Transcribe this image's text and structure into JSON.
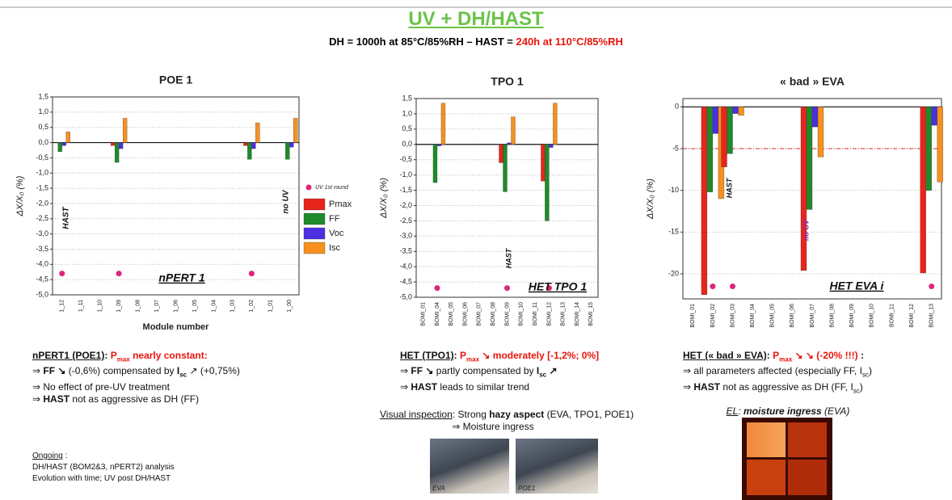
{
  "header": {
    "title": "UV + DH/HAST",
    "subtitle": [
      {
        "t": "DH = 1000h at 85°C/85%RH – HAST = ",
        "s": "b"
      },
      {
        "t": "240h at 110°C/85%RH",
        "s": "r"
      }
    ]
  },
  "chart_data": [
    {
      "type": "bar",
      "title": "POE 1",
      "ylabel": "ΔX/X₀ (%)",
      "xlabel": "Module number",
      "ylim": [
        -5,
        1.5
      ],
      "yticks": [
        {
          "value": 1.5,
          "label": "1,5"
        },
        {
          "value": 1,
          "label": "1,0"
        },
        {
          "value": 0.5,
          "label": "0,5"
        },
        {
          "value": 0,
          "label": "0,0"
        },
        {
          "value": -0.5,
          "label": "-0,5"
        },
        {
          "value": -1,
          "label": "-1,0"
        },
        {
          "value": -1.5,
          "label": "-1,5"
        },
        {
          "value": -2,
          "label": "-2,0"
        },
        {
          "value": -2.5,
          "label": "-2,5"
        },
        {
          "value": -3,
          "label": "-3,0"
        },
        {
          "value": -3.5,
          "label": "-3,5"
        },
        {
          "value": -4,
          "label": "-4,0"
        },
        {
          "value": -4.5,
          "label": "-4,5"
        },
        {
          "value": -5,
          "label": "-5,0"
        }
      ],
      "categories": [
        "1_12",
        "1_11",
        "1_10",
        "1_09",
        "1_08",
        "1_07",
        "1_06",
        "1_05",
        "1_04",
        "1_03",
        "1_02",
        "1_01",
        "1_00"
      ],
      "series": [
        {
          "name": "Pmax",
          "color": "#e8251c",
          "values": [
            0,
            null,
            null,
            -0.1,
            null,
            null,
            null,
            null,
            null,
            null,
            -0.1,
            null,
            0
          ]
        },
        {
          "name": "FF",
          "color": "#1e8a2a",
          "values": [
            -0.3,
            null,
            null,
            -0.65,
            null,
            null,
            null,
            null,
            null,
            null,
            -0.55,
            null,
            -0.55
          ]
        },
        {
          "name": "Voc",
          "color": "#4b2fe0",
          "values": [
            -0.1,
            null,
            null,
            -0.2,
            null,
            null,
            null,
            null,
            null,
            null,
            -0.2,
            null,
            -0.15
          ]
        },
        {
          "name": "Isc",
          "color": "#f7901e",
          "values": [
            0.35,
            null,
            null,
            0.8,
            null,
            null,
            null,
            null,
            null,
            null,
            0.65,
            null,
            0.8
          ]
        }
      ],
      "markers": {
        "name": "UV 1st round",
        "color": "#e0257a",
        "values": [
          -4.3,
          null,
          null,
          -4.3,
          null,
          null,
          null,
          null,
          null,
          null,
          -4.3,
          null,
          null
        ]
      },
      "annotations": [
        "HAST",
        "no UV",
        "nPERT 1"
      ]
    },
    {
      "type": "bar",
      "title": "TPO 1",
      "ylabel": "ΔX/X₀ (%)",
      "ylim": [
        -5,
        1.5
      ],
      "yticks": [
        {
          "value": 1.5,
          "label": "1,5"
        },
        {
          "value": 1,
          "label": "1,0"
        },
        {
          "value": 0.5,
          "label": "0,5"
        },
        {
          "value": 0,
          "label": "0,0"
        },
        {
          "value": -0.5,
          "label": "-0,5"
        },
        {
          "value": -1,
          "label": "-1,0"
        },
        {
          "value": -1.5,
          "label": "-1,5"
        },
        {
          "value": -2,
          "label": "-2,0"
        },
        {
          "value": -2.5,
          "label": "-2,5"
        },
        {
          "value": -3,
          "label": "-3,0"
        },
        {
          "value": -3.5,
          "label": "-3,5"
        },
        {
          "value": -4,
          "label": "-4,0"
        },
        {
          "value": -4.5,
          "label": "-4,5"
        },
        {
          "value": -5,
          "label": "-5,0"
        }
      ],
      "categories": [
        "BOMI_01",
        "BOMI_04",
        "BOMI_05",
        "BOMI_06",
        "BOMI_07",
        "BOMI_08",
        "BOMI_09",
        "BOMI_10",
        "BOMI_11",
        "BOMI_12",
        "BOMI_13",
        "BOMI_14",
        "BOMI_15"
      ],
      "series": [
        {
          "color": "#e8251c",
          "values": [
            null,
            0,
            null,
            null,
            null,
            null,
            -0.6,
            null,
            null,
            -1.2,
            null,
            null,
            null
          ]
        },
        {
          "color": "#1e8a2a",
          "values": [
            null,
            -1.25,
            null,
            null,
            null,
            null,
            -1.55,
            null,
            null,
            -2.5,
            null,
            null,
            null
          ]
        },
        {
          "color": "#4b2fe0",
          "values": [
            null,
            -0.05,
            null,
            null,
            null,
            null,
            0.05,
            null,
            null,
            -0.1,
            null,
            null,
            null
          ]
        },
        {
          "color": "#f7901e",
          "values": [
            null,
            1.35,
            null,
            null,
            null,
            null,
            0.9,
            null,
            null,
            1.35,
            null,
            null,
            null
          ]
        }
      ],
      "markers": {
        "color": "#e0257a",
        "values": [
          null,
          -4.7,
          null,
          null,
          null,
          null,
          -4.7,
          null,
          null,
          -4.7,
          null,
          null,
          null
        ]
      },
      "annotations": [
        "HAST",
        "HET TPO 1"
      ]
    },
    {
      "type": "bar",
      "title": "«  bad » EVA",
      "ylabel": "ΔX/X₀ (%)",
      "ylim": [
        -23,
        1
      ],
      "yticks": [
        0,
        -5,
        -10,
        -15,
        -20
      ],
      "hline": {
        "value": -5,
        "color": "#e8251c"
      },
      "categories": [
        "BOMI_01",
        "BOMI_02",
        "BOMI_03",
        "BOMI_04",
        "BOMI_05",
        "BOMI_06",
        "BOMI_07",
        "BOMI_08",
        "BOMI_09",
        "BOMI_10",
        "BOMI_11",
        "BOMI_12",
        "BOMI_13"
      ],
      "series": [
        {
          "color": "#e8251c",
          "values": [
            null,
            -22.5,
            -7.2,
            null,
            null,
            null,
            -19.6,
            null,
            null,
            null,
            null,
            null,
            -19.9
          ]
        },
        {
          "color": "#1e8a2a",
          "values": [
            null,
            -10.2,
            -5.6,
            null,
            null,
            null,
            -12.3,
            null,
            null,
            null,
            null,
            null,
            -10
          ]
        },
        {
          "color": "#4b2fe0",
          "values": [
            null,
            -3.2,
            -0.8,
            null,
            null,
            null,
            -2.4,
            null,
            null,
            null,
            null,
            null,
            -2.2
          ]
        },
        {
          "color": "#f7901e",
          "values": [
            null,
            -11,
            -1,
            null,
            null,
            null,
            -6,
            null,
            null,
            null,
            null,
            null,
            -9
          ]
        }
      ],
      "markers": {
        "color": "#e0257a",
        "values": [
          null,
          -21.5,
          -21.5,
          null,
          null,
          null,
          null,
          null,
          null,
          null,
          null,
          null,
          -21.5
        ]
      },
      "annotations": [
        "HAST",
        "no UV",
        "HET EVA i"
      ]
    }
  ],
  "notes": [
    {
      "lines": [
        [
          {
            "t": "nPERT1 (POE1)",
            "s": "bu"
          },
          {
            "t": ": ",
            "s": "b"
          },
          {
            "t": "P",
            "s": "r"
          },
          {
            "t": "max",
            "s": "rs"
          },
          {
            "t": " nearly constant:",
            "s": "r"
          }
        ],
        [
          {
            "t": "⇒ ",
            "s": ""
          },
          {
            "t": "FF ↘",
            "s": "b"
          },
          {
            "t": " (-0,6%) compensated by ",
            "s": ""
          },
          {
            "t": "I",
            "s": "b"
          },
          {
            "t": "sc",
            "s": "bs"
          },
          {
            "t": " ↗ (+0,75%)",
            "s": ""
          }
        ],
        [
          {
            "t": "⇒ No effect of pre-UV treatment",
            "s": ""
          }
        ],
        [
          {
            "t": "⇒ ",
            "s": ""
          },
          {
            "t": "HAST",
            "s": "b"
          },
          {
            "t": " not as aggressive as DH (FF)",
            "s": ""
          }
        ]
      ]
    },
    {
      "lines": [
        [
          {
            "t": "Ongoing",
            "s": "u"
          },
          {
            "t": " :",
            "s": ""
          }
        ],
        [
          {
            "t": "DH/HAST (BOM2&3, nPERT2) analysis",
            "s": ""
          }
        ],
        [
          {
            "t": "Evolution with time; UV post DH/HAST",
            "s": ""
          }
        ]
      ]
    },
    {
      "lines": [
        [
          {
            "t": "HET (TPO1)",
            "s": "bu"
          },
          {
            "t": ": ",
            "s": "b"
          },
          {
            "t": "P",
            "s": "r"
          },
          {
            "t": "max",
            "s": "rs"
          },
          {
            "t": " ↘ moderately [-1,2%; 0%]",
            "s": "r"
          }
        ],
        [
          {
            "t": "⇒ ",
            "s": ""
          },
          {
            "t": "FF ↘",
            "s": "b"
          },
          {
            "t": " partly compensated by ",
            "s": ""
          },
          {
            "t": "I",
            "s": "b"
          },
          {
            "t": "sc",
            "s": "bs"
          },
          {
            "t": " ↗",
            "s": "b"
          }
        ],
        [
          {
            "t": "⇒ ",
            "s": ""
          },
          {
            "t": "HAST",
            "s": "b"
          },
          {
            "t": " leads to similar trend",
            "s": ""
          }
        ]
      ]
    },
    {
      "lines": [
        [
          {
            "t": "Visual inspection",
            "s": "u"
          },
          {
            "t": ": Strong ",
            "s": ""
          },
          {
            "t": "hazy aspect",
            "s": "b"
          },
          {
            "t": " (EVA, TPO1, POE1)",
            "s": ""
          }
        ],
        [
          {
            "t": "⇒ Moisture ingress",
            "s": ""
          }
        ]
      ]
    },
    {
      "lines": [
        [
          {
            "t": "HET (« bad » EVA)",
            "s": "bu"
          },
          {
            "t": ": ",
            "s": "b"
          },
          {
            "t": "P",
            "s": "r"
          },
          {
            "t": "max",
            "s": "rs"
          },
          {
            "t": " ↘ ↘ (-20% !!!)",
            "s": "r"
          },
          {
            "t": " :",
            "s": "b"
          }
        ],
        [
          {
            "t": "⇒ all parameters affected (especially FF, I",
            "s": ""
          },
          {
            "t": "sc",
            "s": "s"
          },
          {
            "t": ")",
            "s": ""
          }
        ],
        [
          {
            "t": "⇒ ",
            "s": ""
          },
          {
            "t": "HAST",
            "s": "b"
          },
          {
            "t": " not as aggressive as DH (FF, I",
            "s": ""
          },
          {
            "t": "sc",
            "s": "s"
          },
          {
            "t": ")",
            "s": ""
          }
        ]
      ]
    },
    {
      "lines": [
        [
          {
            "t": "EL",
            "s": "iu"
          },
          {
            "t": ": ",
            "s": "i"
          },
          {
            "t": "moisture ingress",
            "s": "bi"
          },
          {
            "t": " (EVA)",
            "s": "i"
          }
        ]
      ]
    }
  ],
  "photos": [
    "EVA",
    "POE1"
  ]
}
